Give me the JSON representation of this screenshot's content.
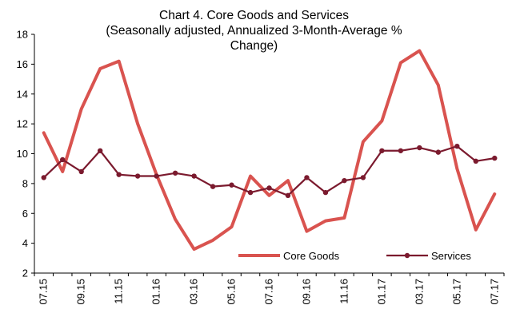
{
  "chart_data": {
    "type": "line",
    "title": "Chart 4. Core Goods and Services",
    "subtitle_line1": "(Seasonally adjusted, Annualized 3-Month-Average %",
    "subtitle_line2": "Change)",
    "x": [
      "07.15",
      "08.15",
      "09.15",
      "10.15",
      "11.15",
      "12.15",
      "01.16",
      "02.16",
      "03.16",
      "04.16",
      "05.16",
      "06.16",
      "07.16",
      "08.16",
      "09.16",
      "10.16",
      "11.16",
      "12.16",
      "01.17",
      "02.17",
      "03.17",
      "04.17",
      "05.17",
      "06.17",
      "07.17"
    ],
    "x_tick_labels": [
      "07.15",
      "09.15",
      "11.15",
      "01.16",
      "03.16",
      "05.16",
      "07.16",
      "09.16",
      "11.16",
      "01.17",
      "03.17",
      "05.17",
      "07.17"
    ],
    "ylim": [
      2,
      18
    ],
    "y_ticks": [
      "2",
      "4",
      "6",
      "8",
      "10",
      "12",
      "14",
      "16",
      "18"
    ],
    "grid": false,
    "legend_position": "bottom-right",
    "series": [
      {
        "name": "Core Goods",
        "color": "#d9534f",
        "values": [
          11.4,
          8.8,
          13.0,
          15.7,
          16.2,
          12.0,
          8.6,
          5.6,
          3.6,
          4.2,
          5.1,
          8.5,
          7.2,
          8.2,
          4.8,
          5.5,
          5.7,
          10.8,
          12.2,
          16.1,
          16.9,
          14.6,
          9.0,
          4.9,
          7.3
        ]
      },
      {
        "name": "Services",
        "color": "#7b1a2e",
        "values": [
          8.4,
          9.6,
          8.8,
          10.2,
          8.6,
          8.5,
          8.5,
          8.7,
          8.5,
          7.8,
          7.9,
          7.4,
          7.7,
          7.2,
          8.4,
          7.4,
          8.2,
          8.4,
          10.2,
          10.2,
          10.4,
          10.1,
          10.5,
          9.5,
          9.7
        ]
      }
    ]
  }
}
